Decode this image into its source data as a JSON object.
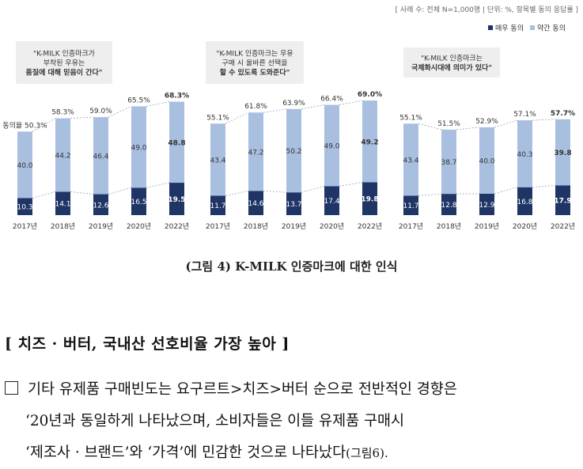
{
  "header_note": "[ 사례 수: 전체 N=1,000명 | 단위: %, 항목별 동의 응답률 ]",
  "legend": [
    {
      "label": "매우 동의",
      "color": "#1f3566"
    },
    {
      "label": "약간 동의",
      "color": "#a9bfe0"
    }
  ],
  "chart_data": [
    {
      "type": "bar",
      "stacked": true,
      "quote_lines": [
        "\"K-MILK 인증마크가",
        "부착된 우유는",
        "품질에 대해 믿음이 간다\""
      ],
      "categories": [
        "2017년",
        "2018년",
        "2019년",
        "2020년",
        "2022년"
      ],
      "series": [
        {
          "name": "매우 동의",
          "values": [
            10.3,
            14.1,
            12.6,
            16.5,
            19.5
          ]
        },
        {
          "name": "약간 동의",
          "values": [
            40.0,
            44.2,
            46.4,
            49.0,
            48.8
          ]
        }
      ],
      "totals": [
        "50.3%",
        "58.3%",
        "59.0%",
        "65.5%",
        "68.3%"
      ],
      "first_total_prefix": "동의율",
      "strong_value_labels": [
        "10.3",
        "14.1",
        "12.6",
        "16.5",
        "19.5"
      ],
      "mild_value_labels": [
        "40.0",
        "44.2",
        "46.4",
        "49.0",
        "48.8"
      ]
    },
    {
      "type": "bar",
      "stacked": true,
      "quote_lines": [
        "\"K-MILK 인증마크는 우유",
        "구매 시 올바른 선택을",
        "할 수 있도록 도와준다\""
      ],
      "categories": [
        "2017년",
        "2018년",
        "2019년",
        "2020년",
        "2022년"
      ],
      "series": [
        {
          "name": "매우 동의",
          "values": [
            11.7,
            14.6,
            13.7,
            17.4,
            19.8
          ]
        },
        {
          "name": "약간 동의",
          "values": [
            43.4,
            47.2,
            50.2,
            49.0,
            49.2
          ]
        }
      ],
      "totals": [
        "55.1%",
        "61.8%",
        "63.9%",
        "66.4%",
        "69.0%"
      ],
      "first_total_prefix": "",
      "strong_value_labels": [
        "11.7",
        "14.6",
        "13.7",
        "17.4",
        "19.8"
      ],
      "mild_value_labels": [
        "43.4",
        "47.2",
        "50.2",
        "49.0",
        "49.2"
      ]
    },
    {
      "type": "bar",
      "stacked": true,
      "quote_lines": [
        "\"K-MILK 인증마크는",
        "국제화시대에 의미가 있다\""
      ],
      "categories": [
        "2017년",
        "2018년",
        "2019년",
        "2020년",
        "2022년"
      ],
      "series": [
        {
          "name": "매우 동의",
          "values": [
            11.7,
            12.8,
            12.9,
            16.8,
            17.9
          ]
        },
        {
          "name": "약간 동의",
          "values": [
            43.4,
            38.7,
            40.0,
            40.3,
            39.8
          ]
        }
      ],
      "totals": [
        "55.1%",
        "51.5%",
        "52.9%",
        "57.1%",
        "57.7%"
      ],
      "first_total_prefix": "",
      "strong_value_labels": [
        "11.7",
        "12.8",
        "12.9",
        "16.8",
        "17.9"
      ],
      "mild_value_labels": [
        "43.4",
        "38.7",
        "40.0",
        "40.3",
        "39.8"
      ]
    }
  ],
  "caption": "(그림 4) K-MILK 인증마크에 대한 인식",
  "section_heading": "[ 치즈 · 버터, 국내산 선호비율 가장 높아 ]",
  "paragraph": {
    "line1": "기타 유제품 구매빈도는 요구르트>치즈>버터 순으로 전반적인 경향은",
    "line2": "‘20년과 동일하게 나타났으며, 소비자들은 이들 유제품 구매시",
    "line3_main": "‘제조사 · 브랜드’와 ‘가격’에 민감한 것으로 나타났다",
    "line3_ref": "(그림6)."
  }
}
